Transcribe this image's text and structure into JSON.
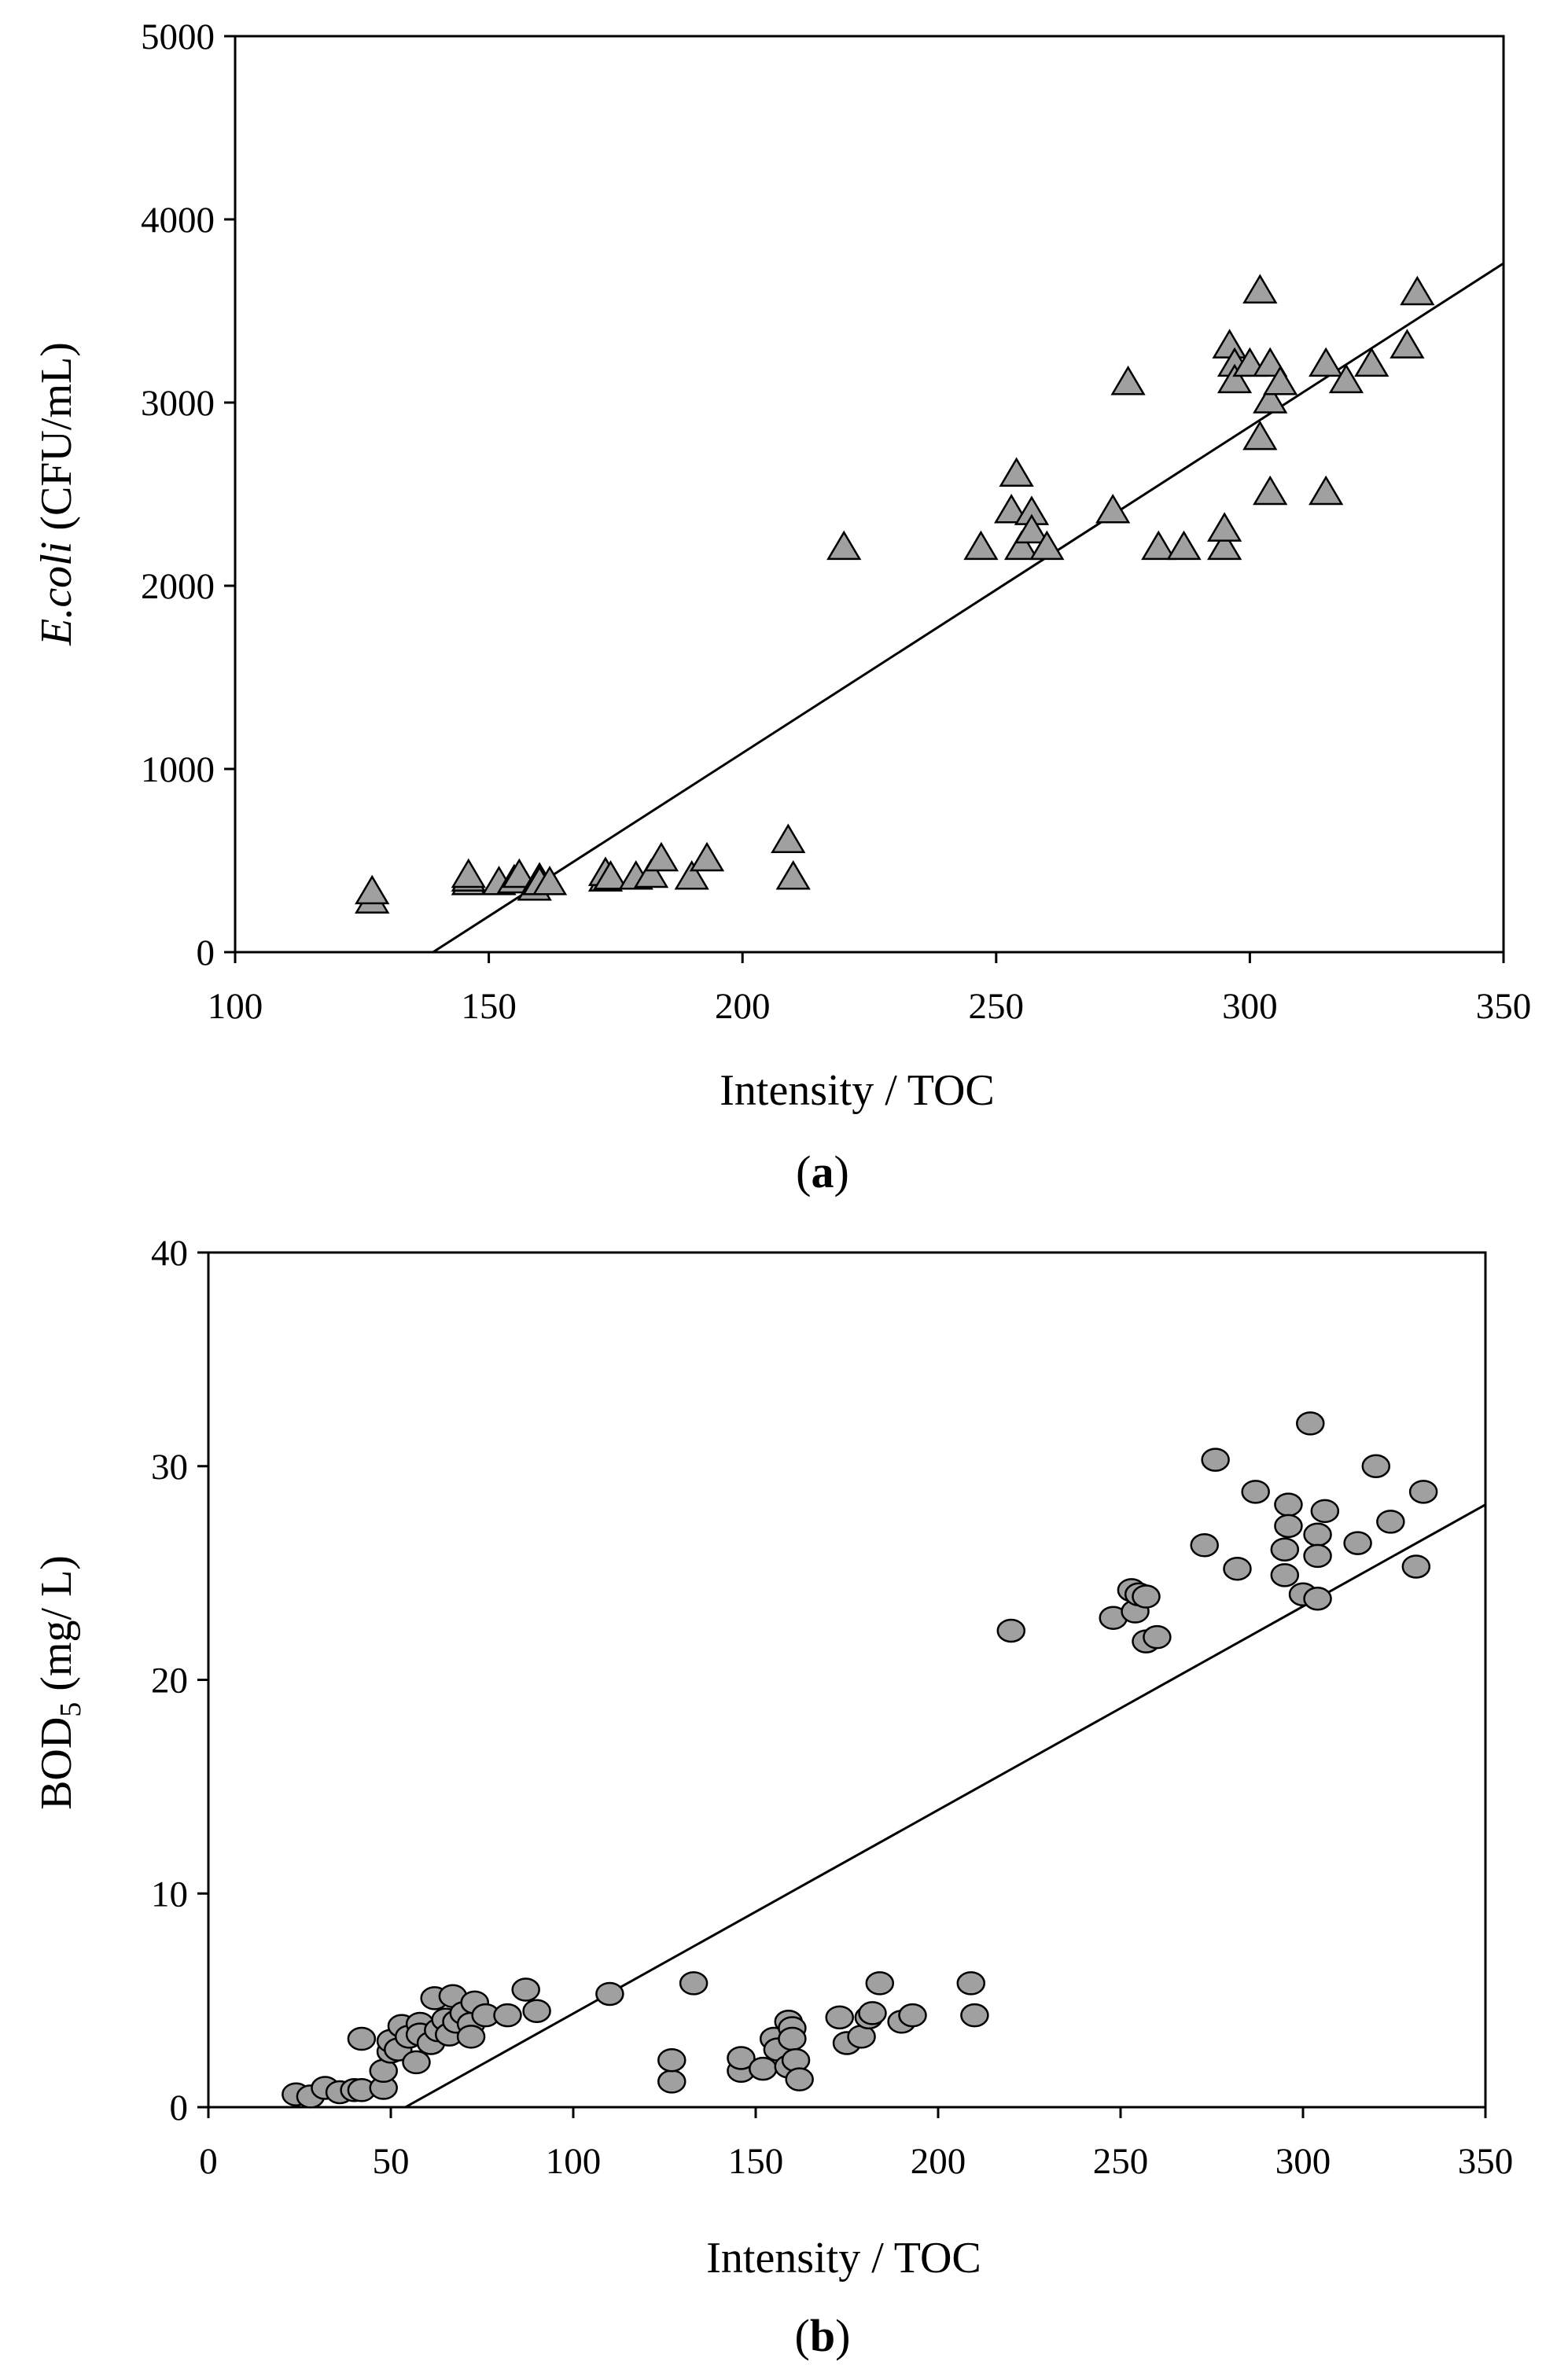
{
  "chart_data": [
    {
      "type": "scatter",
      "panel_label": "a",
      "xlabel": "Intensity / TOC",
      "ylabel_italic": "E.coli",
      "ylabel_rest": " (CFU/mL)",
      "xlim": [
        100,
        350
      ],
      "ylim": [
        0,
        5000
      ],
      "xticks": [
        100,
        150,
        200,
        250,
        300,
        350
      ],
      "yticks": [
        0,
        1000,
        2000,
        3000,
        4000,
        5000
      ],
      "grid": false,
      "marker": "triangle",
      "marker_color": "#a0a0a0",
      "points": [
        {
          "x": 127,
          "y": 280
        },
        {
          "x": 127,
          "y": 330
        },
        {
          "x": 146,
          "y": 380
        },
        {
          "x": 146,
          "y": 400
        },
        {
          "x": 146,
          "y": 420
        },
        {
          "x": 152,
          "y": 380
        },
        {
          "x": 155,
          "y": 390
        },
        {
          "x": 156,
          "y": 420
        },
        {
          "x": 159,
          "y": 350
        },
        {
          "x": 160,
          "y": 400
        },
        {
          "x": 160,
          "y": 380
        },
        {
          "x": 162,
          "y": 380
        },
        {
          "x": 173,
          "y": 400
        },
        {
          "x": 173,
          "y": 430
        },
        {
          "x": 174,
          "y": 410
        },
        {
          "x": 179,
          "y": 410
        },
        {
          "x": 182,
          "y": 420
        },
        {
          "x": 184,
          "y": 510
        },
        {
          "x": 190,
          "y": 410
        },
        {
          "x": 193,
          "y": 510
        },
        {
          "x": 209,
          "y": 610
        },
        {
          "x": 210,
          "y": 410
        },
        {
          "x": 220,
          "y": 2210
        },
        {
          "x": 247,
          "y": 2210
        },
        {
          "x": 253,
          "y": 2410
        },
        {
          "x": 254,
          "y": 2610
        },
        {
          "x": 255,
          "y": 2210
        },
        {
          "x": 257,
          "y": 2400
        },
        {
          "x": 257,
          "y": 2300
        },
        {
          "x": 260,
          "y": 2210
        },
        {
          "x": 273,
          "y": 2410
        },
        {
          "x": 276,
          "y": 3110
        },
        {
          "x": 282,
          "y": 2210
        },
        {
          "x": 287,
          "y": 2210
        },
        {
          "x": 295,
          "y": 2210
        },
        {
          "x": 295,
          "y": 2310
        },
        {
          "x": 296,
          "y": 3310
        },
        {
          "x": 297,
          "y": 3210
        },
        {
          "x": 297,
          "y": 3120
        },
        {
          "x": 300,
          "y": 3210
        },
        {
          "x": 302,
          "y": 3610
        },
        {
          "x": 302,
          "y": 2810
        },
        {
          "x": 304,
          "y": 3210
        },
        {
          "x": 304,
          "y": 3010
        },
        {
          "x": 304,
          "y": 2510
        },
        {
          "x": 306,
          "y": 3110
        },
        {
          "x": 315,
          "y": 3210
        },
        {
          "x": 315,
          "y": 2510
        },
        {
          "x": 319,
          "y": 3120
        },
        {
          "x": 324,
          "y": 3210
        },
        {
          "x": 331,
          "y": 3310
        },
        {
          "x": 333,
          "y": 3600
        }
      ],
      "trendline": {
        "x": [
          139,
          350
        ],
        "y": [
          0,
          3760
        ]
      }
    },
    {
      "type": "scatter",
      "panel_label": "b",
      "xlabel": "Intensity / TOC",
      "ylabel_main": "BOD",
      "ylabel_sub": "5",
      "ylabel_rest": " (mg/ L)",
      "xlim": [
        0,
        350
      ],
      "ylim": [
        0,
        40
      ],
      "xticks": [
        0,
        50,
        100,
        150,
        200,
        250,
        300,
        350
      ],
      "yticks": [
        0,
        10,
        20,
        30,
        40
      ],
      "grid": false,
      "marker": "circle",
      "marker_color": "#a0a0a0",
      "points": [
        {
          "x": 24,
          "y": 0.6
        },
        {
          "x": 28,
          "y": 0.5
        },
        {
          "x": 32,
          "y": 0.9
        },
        {
          "x": 36,
          "y": 0.7
        },
        {
          "x": 40,
          "y": 0.8
        },
        {
          "x": 42,
          "y": 0.8
        },
        {
          "x": 42,
          "y": 3.2
        },
        {
          "x": 48,
          "y": 0.9
        },
        {
          "x": 48,
          "y": 1.7
        },
        {
          "x": 50,
          "y": 2.6
        },
        {
          "x": 50,
          "y": 3.1
        },
        {
          "x": 52,
          "y": 2.7
        },
        {
          "x": 53,
          "y": 3.8
        },
        {
          "x": 55,
          "y": 3.3
        },
        {
          "x": 57,
          "y": 2.1
        },
        {
          "x": 58,
          "y": 3.9
        },
        {
          "x": 58,
          "y": 3.4
        },
        {
          "x": 61,
          "y": 3.0
        },
        {
          "x": 62,
          "y": 5.1
        },
        {
          "x": 63,
          "y": 3.6
        },
        {
          "x": 65,
          "y": 4.1
        },
        {
          "x": 66,
          "y": 3.4
        },
        {
          "x": 67,
          "y": 5.2
        },
        {
          "x": 68,
          "y": 4.0
        },
        {
          "x": 70,
          "y": 4.4
        },
        {
          "x": 72,
          "y": 3.9
        },
        {
          "x": 72,
          "y": 3.3
        },
        {
          "x": 73,
          "y": 4.9
        },
        {
          "x": 76,
          "y": 4.3
        },
        {
          "x": 82,
          "y": 4.3
        },
        {
          "x": 87,
          "y": 5.5
        },
        {
          "x": 90,
          "y": 4.5
        },
        {
          "x": 110,
          "y": 5.3
        },
        {
          "x": 127,
          "y": 1.2
        },
        {
          "x": 127,
          "y": 2.2
        },
        {
          "x": 133,
          "y": 5.8
        },
        {
          "x": 146,
          "y": 1.7
        },
        {
          "x": 146,
          "y": 2.3
        },
        {
          "x": 152,
          "y": 1.8
        },
        {
          "x": 155,
          "y": 3.2
        },
        {
          "x": 156,
          "y": 2.7
        },
        {
          "x": 159,
          "y": 4.0
        },
        {
          "x": 159,
          "y": 1.9
        },
        {
          "x": 160,
          "y": 3.7
        },
        {
          "x": 160,
          "y": 3.2
        },
        {
          "x": 161,
          "y": 2.2
        },
        {
          "x": 162,
          "y": 1.3
        },
        {
          "x": 173,
          "y": 4.2
        },
        {
          "x": 175,
          "y": 3.0
        },
        {
          "x": 179,
          "y": 3.3
        },
        {
          "x": 181,
          "y": 4.2
        },
        {
          "x": 182,
          "y": 4.4
        },
        {
          "x": 184,
          "y": 5.8
        },
        {
          "x": 190,
          "y": 4.0
        },
        {
          "x": 193,
          "y": 4.3
        },
        {
          "x": 209,
          "y": 5.8
        },
        {
          "x": 210,
          "y": 4.3
        },
        {
          "x": 220,
          "y": 22.3
        },
        {
          "x": 248,
          "y": 22.9
        },
        {
          "x": 253,
          "y": 24.2
        },
        {
          "x": 254,
          "y": 23.2
        },
        {
          "x": 255,
          "y": 24.0
        },
        {
          "x": 257,
          "y": 23.9
        },
        {
          "x": 257,
          "y": 21.8
        },
        {
          "x": 260,
          "y": 22.0
        },
        {
          "x": 273,
          "y": 26.3
        },
        {
          "x": 276,
          "y": 30.3
        },
        {
          "x": 282,
          "y": 25.2
        },
        {
          "x": 287,
          "y": 28.8
        },
        {
          "x": 295,
          "y": 24.9
        },
        {
          "x": 295,
          "y": 26.1
        },
        {
          "x": 296,
          "y": 28.2
        },
        {
          "x": 296,
          "y": 27.2
        },
        {
          "x": 300,
          "y": 24.0
        },
        {
          "x": 302,
          "y": 32.0
        },
        {
          "x": 304,
          "y": 26.8
        },
        {
          "x": 304,
          "y": 25.8
        },
        {
          "x": 304,
          "y": 23.8
        },
        {
          "x": 306,
          "y": 27.9
        },
        {
          "x": 315,
          "y": 26.4
        },
        {
          "x": 320,
          "y": 30.0
        },
        {
          "x": 324,
          "y": 27.4
        },
        {
          "x": 331,
          "y": 25.3
        },
        {
          "x": 333,
          "y": 28.8
        }
      ],
      "trendline": {
        "x": [
          54,
          350
        ],
        "y": [
          0,
          28.2
        ]
      }
    }
  ]
}
